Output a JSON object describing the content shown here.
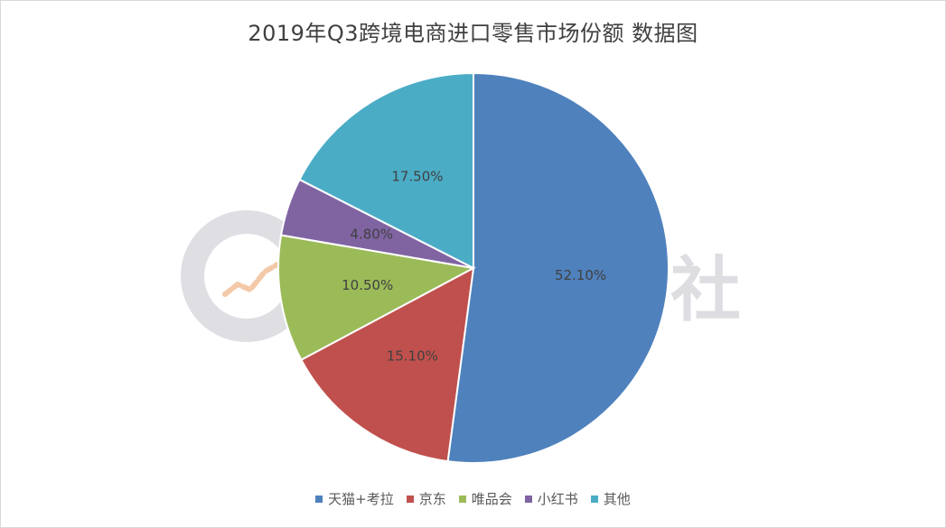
{
  "chart_data": {
    "type": "pie",
    "title": "2019年Q3跨境电商进口零售市场份额 数据图",
    "categories": [
      "天猫+考拉",
      "京东",
      "唯品会",
      "小红书",
      "其他"
    ],
    "values": [
      52.1,
      15.1,
      10.5,
      4.8,
      17.5
    ],
    "data_labels": [
      "52.10%",
      "15.10%",
      "10.50%",
      "4.80%",
      "17.50%"
    ],
    "colors": [
      "#4f81bd",
      "#c0504d",
      "#9bbb59",
      "#8064a2",
      "#4bacc6"
    ],
    "start_angle_deg": 0,
    "direction": "clockwise",
    "legend_position": "bottom"
  },
  "watermark": {
    "text": "港股研究社"
  }
}
